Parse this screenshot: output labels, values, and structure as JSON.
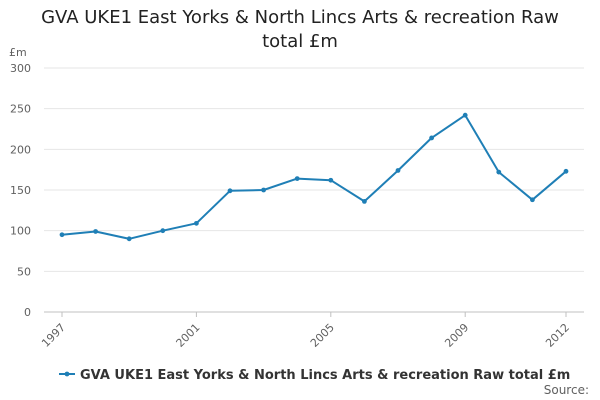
{
  "title": "GVA UKE1 East Yorks & North Lincs Arts & recreation Raw total £m",
  "source": "Source:",
  "colors": {
    "series": "#1f7fb6",
    "grid": "#e6e6e6",
    "axis": "#c0c0c0"
  },
  "chart_data": {
    "type": "line",
    "title": "GVA UKE1 East Yorks & North Lincs Arts & recreation Raw total £m",
    "ylabel": "£m",
    "xlabel": "",
    "x": [
      1997,
      1998,
      1999,
      2000,
      2001,
      2002,
      2003,
      2004,
      2005,
      2006,
      2007,
      2008,
      2009,
      2010,
      2011,
      2012
    ],
    "xticks": [
      "1997",
      "2001",
      "2005",
      "2009",
      "2012"
    ],
    "yticks": [
      "0",
      "50",
      "100",
      "150",
      "200",
      "250",
      "300"
    ],
    "ylim": [
      0,
      300
    ],
    "grid": "horizontal",
    "legend_position": "bottom",
    "series": [
      {
        "name": "GVA UKE1 East Yorks & North Lincs Arts & recreation Raw total £m",
        "values": [
          95,
          99,
          90,
          100,
          109,
          149,
          150,
          164,
          162,
          136,
          174,
          214,
          242,
          172,
          138,
          173
        ]
      }
    ]
  }
}
